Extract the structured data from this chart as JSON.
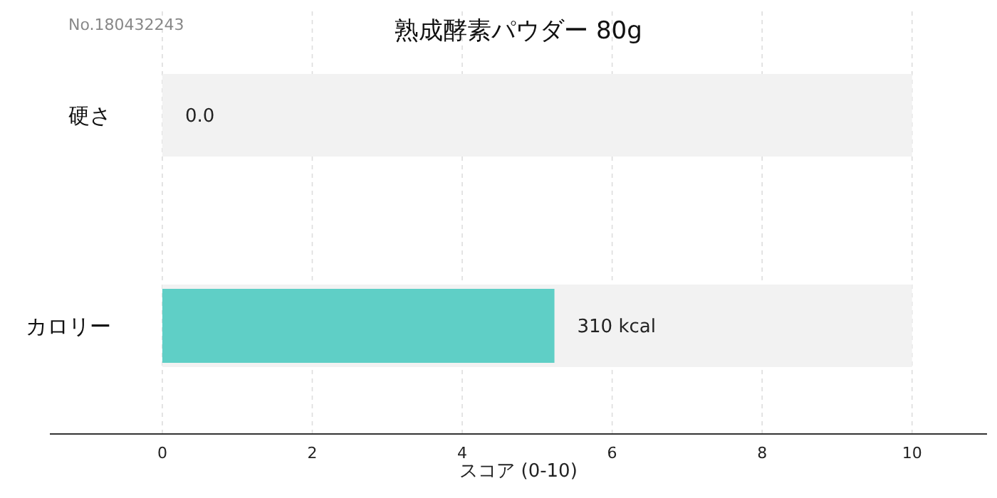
{
  "chart_data": {
    "type": "bar",
    "orientation": "horizontal",
    "title": "熟成酵素パウダー 80g",
    "xlabel": "スコア (0-10)",
    "annotations": [
      "No.180432243",
      {
        "text": "310 kcal",
        "x": 5.23,
        "y": "カロリー"
      }
    ],
    "categories": [
      "硬さ",
      "カロリー"
    ],
    "series": [
      {
        "color": "#f2f2f2",
        "values": [
          10,
          10
        ]
      },
      {
        "color": "#5fcfc6",
        "values": [
          0.0,
          5.23
        ],
        "value_labels": [
          "0.0",
          null
        ]
      }
    ],
    "xlim": [
      -1.5,
      11
    ],
    "xticks": [
      0,
      2,
      4,
      6,
      8,
      10
    ],
    "grid": "x"
  }
}
